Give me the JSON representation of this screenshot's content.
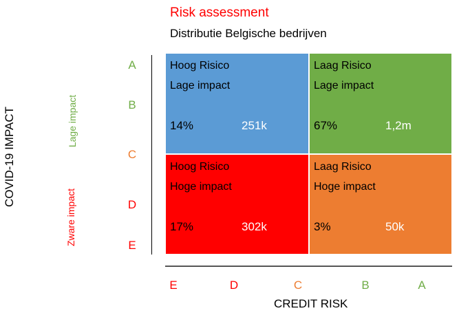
{
  "title": "Risk assessment",
  "subtitle": "Distributie Belgische bedrijven",
  "y_axis": {
    "title": "COVID-19 IMPACT",
    "group_labels": {
      "lage": "Lage impact",
      "zware": "Zware impact"
    },
    "letters": [
      "A",
      "B",
      "C",
      "D",
      "E"
    ]
  },
  "x_axis": {
    "title": "CREDIT RISK",
    "letters": [
      "E",
      "D",
      "C",
      "B",
      "A"
    ]
  },
  "cells": {
    "top_left": {
      "line1": "Hoog Risico",
      "line2": "Lage impact",
      "percent": "14%",
      "amount": "251k",
      "color": "#5b9bd5"
    },
    "top_right": {
      "line1": "Laag Risico",
      "line2": "Lage impact",
      "percent": "67%",
      "amount": "1,2m",
      "color": "#70ad47"
    },
    "bottom_left": {
      "line1": "Hoog Risico",
      "line2": "Hoge impact",
      "percent": "17%",
      "amount": "302k",
      "color": "#ff0000"
    },
    "bottom_right": {
      "line1": "Laag Risico",
      "line2": "Hoge impact",
      "percent": "3%",
      "amount": "50k",
      "color": "#ed7d31"
    }
  },
  "colors": {
    "green": "#70ad47",
    "red": "#ff0000",
    "orange": "#ed7d31",
    "blue": "#5b9bd5"
  }
}
